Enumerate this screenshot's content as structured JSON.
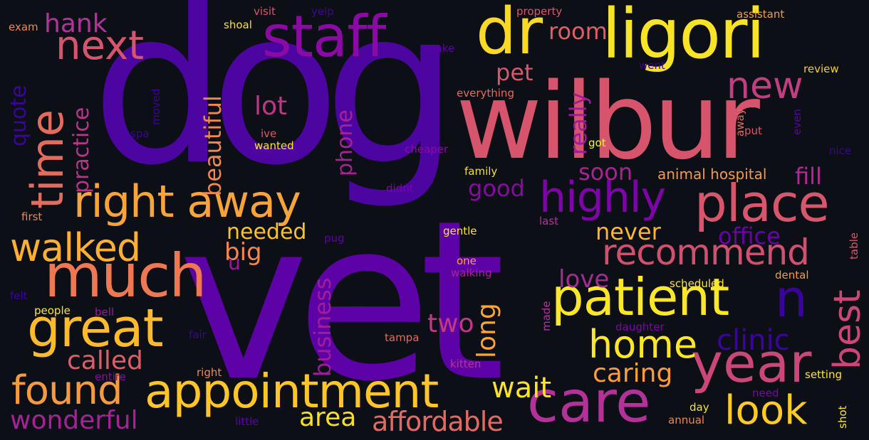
{
  "words": [
    {
      "id": "w-dog",
      "text": "dog",
      "color": "#4c05a0"
    },
    {
      "id": "w-vet",
      "text": "vet",
      "color": "#5d02a6"
    },
    {
      "id": "w-wilbur",
      "text": "wilbur",
      "color": "#d6556d"
    },
    {
      "id": "w-ligori",
      "text": "ligori",
      "color": "#f7e425"
    },
    {
      "id": "w-dr",
      "text": "dr",
      "color": "#f9d924"
    },
    {
      "id": "w-staff",
      "text": "staff",
      "color": "#8b0aa5"
    },
    {
      "id": "w-appointment",
      "text": "appointment",
      "color": "#fdc527"
    },
    {
      "id": "w-care",
      "text": "care",
      "color": "#b5319a"
    },
    {
      "id": "w-patient",
      "text": "patient",
      "color": "#fbe72a"
    },
    {
      "id": "w-year",
      "text": "year",
      "color": "#cb4679"
    },
    {
      "id": "w-much",
      "text": "much",
      "color": "#ee7851"
    },
    {
      "id": "w-great",
      "text": "great",
      "color": "#fdbb2c"
    },
    {
      "id": "w-place",
      "text": "place",
      "color": "#d7566c"
    },
    {
      "id": "w-recommend",
      "text": "recommend",
      "color": "#d0506f"
    },
    {
      "id": "w-highly",
      "text": "highly",
      "color": "#7e03a8"
    },
    {
      "id": "w-right-away",
      "text": "right away",
      "color": "#f9a43a"
    },
    {
      "id": "w-walked",
      "text": "walked",
      "color": "#fdaf31"
    },
    {
      "id": "w-found",
      "text": "found",
      "color": "#f49a41"
    },
    {
      "id": "w-next",
      "text": "next",
      "color": "#d5546e"
    },
    {
      "id": "w-time",
      "text": "time",
      "color": "#e56b5d"
    },
    {
      "id": "w-home",
      "text": "home",
      "color": "#fde725"
    },
    {
      "id": "w-look",
      "text": "look",
      "color": "#fdca26"
    },
    {
      "id": "w-best",
      "text": "best",
      "color": "#cc4778"
    },
    {
      "id": "w-n",
      "text": "n",
      "color": "#3a049a"
    },
    {
      "id": "w-new",
      "text": "new",
      "color": "#c13f81"
    },
    {
      "id": "w-wonderful",
      "text": "wonderful",
      "color": "#a72197"
    },
    {
      "id": "w-affordable",
      "text": "affordable",
      "color": "#e4695e"
    },
    {
      "id": "w-clinic",
      "text": "clinic",
      "color": "#3b049a"
    },
    {
      "id": "w-caring",
      "text": "caring",
      "color": "#fa9e3b"
    },
    {
      "id": "w-wait",
      "text": "wait",
      "color": "#fde129"
    },
    {
      "id": "w-called",
      "text": "called",
      "color": "#dd5e66"
    },
    {
      "id": "w-two",
      "text": "two",
      "color": "#c03a83"
    },
    {
      "id": "w-area",
      "text": "area",
      "color": "#f4e125"
    },
    {
      "id": "w-love",
      "text": "love",
      "color": "#a22b94"
    },
    {
      "id": "w-never",
      "text": "never",
      "color": "#fdb42f"
    },
    {
      "id": "w-office",
      "text": "office",
      "color": "#6a00a8"
    },
    {
      "id": "w-hank",
      "text": "hank",
      "color": "#b4339a"
    },
    {
      "id": "w-lot",
      "text": "lot",
      "color": "#bd3786"
    },
    {
      "id": "w-needed",
      "text": "needed",
      "color": "#fec029"
    },
    {
      "id": "w-big",
      "text": "big",
      "color": "#f48849"
    },
    {
      "id": "w-room",
      "text": "room",
      "color": "#de5f65"
    },
    {
      "id": "w-pet",
      "text": "pet",
      "color": "#d8576b"
    },
    {
      "id": "w-good",
      "text": "good",
      "color": "#8a09a5"
    },
    {
      "id": "w-soon",
      "text": "soon",
      "color": "#a82296"
    },
    {
      "id": "w-fill",
      "text": "fill",
      "color": "#b12a90"
    },
    {
      "id": "w-u",
      "text": "u",
      "color": "#9c179e"
    },
    {
      "id": "w-animal-hospital",
      "text": "animal hospital",
      "color": "#f79a3f"
    },
    {
      "id": "w-quote",
      "text": "quote",
      "color": "#3b049a"
    },
    {
      "id": "w-practice",
      "text": "practice",
      "color": "#b9358a"
    },
    {
      "id": "w-beautiful",
      "text": "beautiful",
      "color": "#f0884b"
    },
    {
      "id": "w-phone",
      "text": "phone",
      "color": "#a82296"
    },
    {
      "id": "w-business",
      "text": "business",
      "color": "#9f1c9a"
    },
    {
      "id": "w-long",
      "text": "long",
      "color": "#fca535"
    },
    {
      "id": "w-really",
      "text": "really",
      "color": "#a01a9c"
    },
    {
      "id": "w-exam",
      "text": "exam",
      "color": "#f0884b"
    },
    {
      "id": "w-visit",
      "text": "visit",
      "color": "#d6556d"
    },
    {
      "id": "w-yelp",
      "text": "yelp",
      "color": "#3f049c"
    },
    {
      "id": "w-property",
      "text": "property",
      "color": "#d8576b"
    },
    {
      "id": "w-assistant",
      "text": "assistant",
      "color": "#f79a3f"
    },
    {
      "id": "w-shoal",
      "text": "shoal",
      "color": "#f8e02a"
    },
    {
      "id": "w-make",
      "text": "make",
      "color": "#5d02a6"
    },
    {
      "id": "w-went",
      "text": "went",
      "color": "#3a049a"
    },
    {
      "id": "w-review",
      "text": "review",
      "color": "#f3d027"
    },
    {
      "id": "w-everything",
      "text": "everything",
      "color": "#e66c5c"
    },
    {
      "id": "w-spa",
      "text": "spa",
      "color": "#3a049a"
    },
    {
      "id": "w-moved",
      "text": "moved",
      "color": "#3b049a"
    },
    {
      "id": "w-ive",
      "text": "ive",
      "color": "#d8576b"
    },
    {
      "id": "w-wanted",
      "text": "wanted",
      "color": "#fde725"
    },
    {
      "id": "w-cheaper",
      "text": "cheaper",
      "color": "#8a09a5"
    },
    {
      "id": "w-got",
      "text": "got",
      "color": "#f0f921"
    },
    {
      "id": "w-put",
      "text": "put",
      "color": "#d8576b"
    },
    {
      "id": "w-away-small",
      "text": "away",
      "color": "#e4695e"
    },
    {
      "id": "w-even",
      "text": "even",
      "color": "#5d02a6"
    },
    {
      "id": "w-nice",
      "text": "nice",
      "color": "#3a049a"
    },
    {
      "id": "w-family",
      "text": "family",
      "color": "#f8df25"
    },
    {
      "id": "w-didnt",
      "text": "didnt",
      "color": "#7e03a8"
    },
    {
      "id": "w-first",
      "text": "first",
      "color": "#f0884b"
    },
    {
      "id": "w-pug",
      "text": "pug",
      "color": "#5d02a6"
    },
    {
      "id": "w-gentle",
      "text": "gentle",
      "color": "#fde725"
    },
    {
      "id": "w-last",
      "text": "last",
      "color": "#b4339a"
    },
    {
      "id": "w-table",
      "text": "table",
      "color": "#d6556d"
    },
    {
      "id": "w-one",
      "text": "one",
      "color": "#fca636"
    },
    {
      "id": "w-walking",
      "text": "walking",
      "color": "#a72197"
    },
    {
      "id": "w-dental",
      "text": "dental",
      "color": "#f79a3f"
    },
    {
      "id": "w-felt",
      "text": "felt",
      "color": "#3a049a"
    },
    {
      "id": "w-scheduled",
      "text": "scheduled",
      "color": "#fde725"
    },
    {
      "id": "w-people",
      "text": "people",
      "color": "#fde725"
    },
    {
      "id": "w-bell",
      "text": "bell",
      "color": "#9c179e"
    },
    {
      "id": "w-made",
      "text": "made",
      "color": "#b4339a"
    },
    {
      "id": "w-daughter",
      "text": "daughter",
      "color": "#7e03a8"
    },
    {
      "id": "w-fair",
      "text": "fair",
      "color": "#3a049a"
    },
    {
      "id": "w-tampa",
      "text": "tampa",
      "color": "#e4695e"
    },
    {
      "id": "w-entire",
      "text": "entire",
      "color": "#8a09a5"
    },
    {
      "id": "w-right",
      "text": "right",
      "color": "#f0884b"
    },
    {
      "id": "w-kitten",
      "text": "kitten",
      "color": "#b4339a"
    },
    {
      "id": "w-setting",
      "text": "setting",
      "color": "#fde725"
    },
    {
      "id": "w-need",
      "text": "need",
      "color": "#7e03a8"
    },
    {
      "id": "w-day",
      "text": "day",
      "color": "#f0e040"
    },
    {
      "id": "w-annual",
      "text": "annual",
      "color": "#f0884b"
    },
    {
      "id": "w-little",
      "text": "little",
      "color": "#5d02a6"
    },
    {
      "id": "w-shot",
      "text": "shot",
      "color": "#fde725"
    }
  ]
}
